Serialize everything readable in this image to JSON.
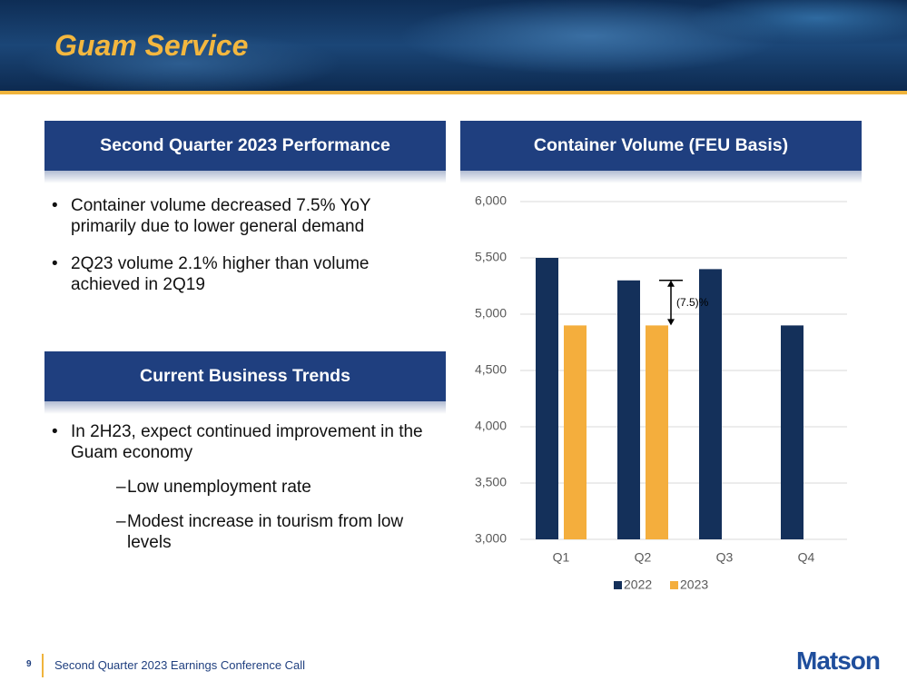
{
  "header": {
    "title": "Guam Service"
  },
  "panels": [
    {
      "title": "Second Quarter 2023 Performance",
      "bullets": [
        {
          "text": "Container volume decreased 7.5% YoY primarily due to lower general demand"
        },
        {
          "text": "2Q23 volume 2.1% higher than volume achieved in 2Q19"
        }
      ]
    },
    {
      "title": "Current Business Trends",
      "bullets": [
        {
          "text": "In 2H23, expect continued improvement in the Guam economy",
          "sub": [
            "Low unemployment rate",
            "Modest increase in tourism from low levels"
          ]
        }
      ]
    },
    {
      "title": "Container Volume (FEU Basis)"
    }
  ],
  "footer": {
    "page": "9",
    "text": "Second Quarter 2023 Earnings Conference Call",
    "logo": "Matson"
  },
  "chart_data": {
    "type": "bar",
    "categories": [
      "Q1",
      "Q2",
      "Q3",
      "Q4"
    ],
    "series": [
      {
        "name": "2022",
        "color": "#14305a",
        "values": [
          5500,
          5300,
          5400,
          4900
        ]
      },
      {
        "name": "2023",
        "color": "#f4ae3d",
        "values": [
          4900,
          4900,
          null,
          null
        ]
      }
    ],
    "ylim": [
      3000,
      6000
    ],
    "yticks": [
      {
        "value": 3000,
        "label": "3,000"
      },
      {
        "value": 3500,
        "label": "3,500"
      },
      {
        "value": 4000,
        "label": "4,000"
      },
      {
        "value": 4500,
        "label": "4,500"
      },
      {
        "value": 5000,
        "label": "5,000"
      },
      {
        "value": 5500,
        "label": "5,500"
      },
      {
        "value": 6000,
        "label": "6,000"
      }
    ],
    "grid": true,
    "annotation": "(7.5)%",
    "legend": "bottom"
  }
}
